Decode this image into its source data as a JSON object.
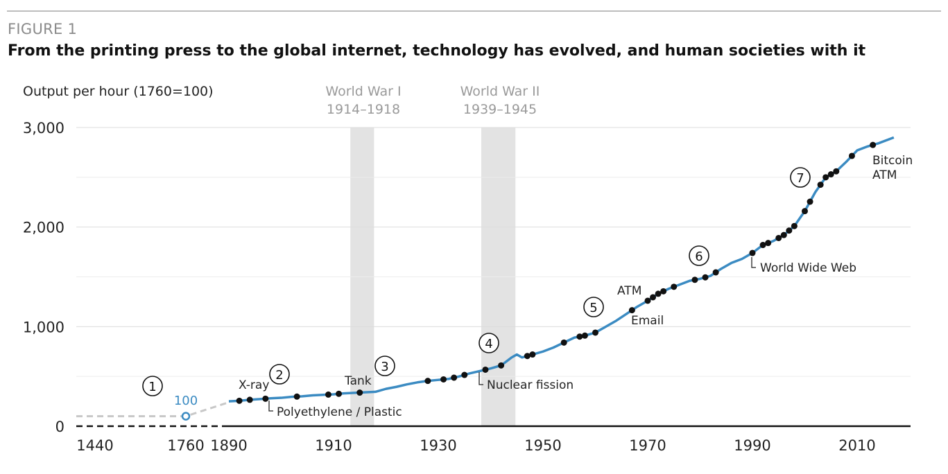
{
  "figure": {
    "label": "FIGURE 1",
    "title": "From the printing press to the global internet, technology has evolved, and human societies with it"
  },
  "chart_data": {
    "type": "line",
    "ylabel": "Output per hour (1760=100)",
    "ylim": [
      0,
      3000
    ],
    "y_ticks": [
      0,
      1000,
      2000,
      3000
    ],
    "y_tick_labels": [
      "0",
      "1,000",
      "2,000",
      "3,000"
    ],
    "x_tick_labels": [
      "1440",
      "1760",
      "1890",
      "1910",
      "1930",
      "1950",
      "1970",
      "1990",
      "2010"
    ],
    "grid": true,
    "colors": {
      "line": "#3b8bc2",
      "dots": "#111111",
      "shade": "#e3e3e3",
      "pre_line": "#c8c8c8",
      "baseline": "#111111"
    },
    "pre_industrial": {
      "x": [
        1440,
        1760,
        1890
      ],
      "values": [
        100,
        100,
        240
      ],
      "marker_label": "100"
    },
    "series": [
      {
        "x": [
          1890,
          1892,
          1894,
          1896,
          1898,
          1900,
          1902,
          1904,
          1906,
          1908,
          1910,
          1912,
          1914,
          1916,
          1918,
          1920,
          1922,
          1924,
          1926,
          1928,
          1930,
          1932,
          1934,
          1936,
          1938,
          1940,
          1942,
          1943,
          1944,
          1945,
          1946,
          1948,
          1950,
          1952,
          1954,
          1956,
          1958,
          1960,
          1962,
          1964,
          1966,
          1968,
          1970,
          1972,
          1974,
          1976,
          1978,
          1980,
          1982,
          1984,
          1986,
          1988,
          1990,
          1992,
          1994,
          1996,
          1998,
          2000,
          2002,
          2004,
          2006,
          2008,
          2010,
          2012,
          2014,
          2016,
          2017
        ],
        "values": [
          250,
          255,
          265,
          272,
          280,
          285,
          295,
          300,
          310,
          315,
          320,
          330,
          335,
          340,
          345,
          375,
          395,
          420,
          440,
          455,
          465,
          475,
          500,
          530,
          555,
          580,
          610,
          650,
          690,
          720,
          690,
          720,
          750,
          790,
          840,
          890,
          910,
          940,
          1000,
          1060,
          1130,
          1200,
          1260,
          1330,
          1380,
          1420,
          1460,
          1480,
          1510,
          1580,
          1640,
          1680,
          1740,
          1820,
          1860,
          1920,
          2010,
          2160,
          2350,
          2500,
          2560,
          2660,
          2770,
          2810,
          2840,
          2880,
          2900
        ]
      }
    ],
    "markers_x": [
      1892,
      1894,
      1897,
      1903,
      1909,
      1911,
      1915,
      1928,
      1931,
      1933,
      1935,
      1939,
      1942,
      1947,
      1948,
      1954,
      1957,
      1958,
      1960,
      1967,
      1970,
      1971,
      1972,
      1973,
      1975,
      1979,
      1981,
      1983,
      1990,
      1992,
      1993,
      1995,
      1996,
      1997,
      1998,
      2000,
      2001,
      2003,
      2004,
      2005,
      2006,
      2009,
      2013
    ],
    "shaded_periods": [
      {
        "x_start": 1914,
        "x_end": 1918,
        "label_line1": "World War I",
        "label_line2": "1914–1918"
      },
      {
        "x_start": 1939,
        "x_end": 1945,
        "label_line1": "World War II",
        "label_line2": "1939–1945"
      }
    ],
    "annotations": [
      "X-ray",
      "Polyethylene / Plastic",
      "Tank",
      "Nuclear fission",
      "ATM",
      "Email",
      "World Wide Web",
      "Bitcoin",
      "ATM"
    ],
    "numbered_circles": [
      "1",
      "2",
      "3",
      "4",
      "5",
      "6",
      "7"
    ]
  }
}
